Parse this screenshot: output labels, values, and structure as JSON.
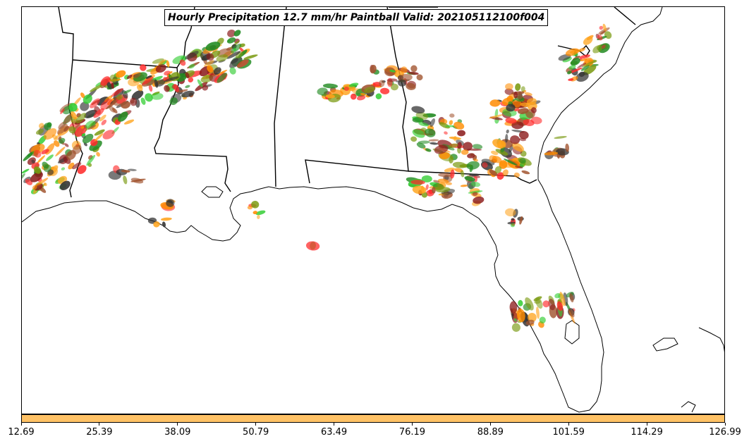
{
  "title": "Hourly Precipitation 12.7 mm/hr Paintball Valid: 202105112100f004",
  "colorbar": {
    "color": "#ffc266",
    "ticks": [
      "12.69",
      "25.39",
      "38.09",
      "50.79",
      "63.49",
      "76.19",
      "88.89",
      "101.59",
      "114.29",
      "126.99"
    ]
  },
  "map": {
    "land_line_color": "#000000",
    "ensemble_colors": [
      "#ff2b2b",
      "#ff8c00",
      "#ffa31a",
      "#8b1a1a",
      "#228b22",
      "#32cd32",
      "#7a9a10",
      "#a0522d",
      "#333333"
    ]
  }
}
